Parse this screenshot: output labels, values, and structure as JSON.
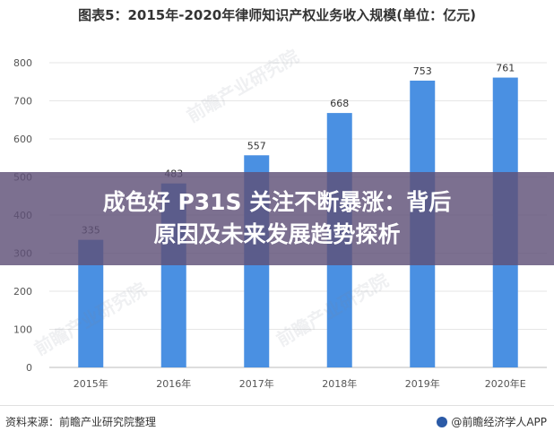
{
  "chart_data": {
    "type": "bar",
    "title": "图表5：2015年-2020年律师知识产权业务收入规模(单位：亿元)",
    "categories": [
      "2015年",
      "2016年",
      "2017年",
      "2018年",
      "2019年",
      "2020年E"
    ],
    "values": [
      335,
      483,
      557,
      668,
      753,
      761
    ],
    "ylim": [
      0,
      800
    ],
    "yticks": [
      0,
      100,
      200,
      300,
      400,
      500,
      600,
      700,
      800
    ],
    "xlabel": "",
    "ylabel": "",
    "grid": true,
    "bar_color": "#4a90e2"
  },
  "overlay": {
    "line1": "成色好 P31S 关注不断暴涨：背后",
    "line2": "原因及未来发展趋势探析"
  },
  "footer": {
    "source": "资料来源：前瞻产业研究院整理",
    "brand": "@前瞻经济学人APP"
  },
  "watermark_text": "前瞻产业研究院"
}
